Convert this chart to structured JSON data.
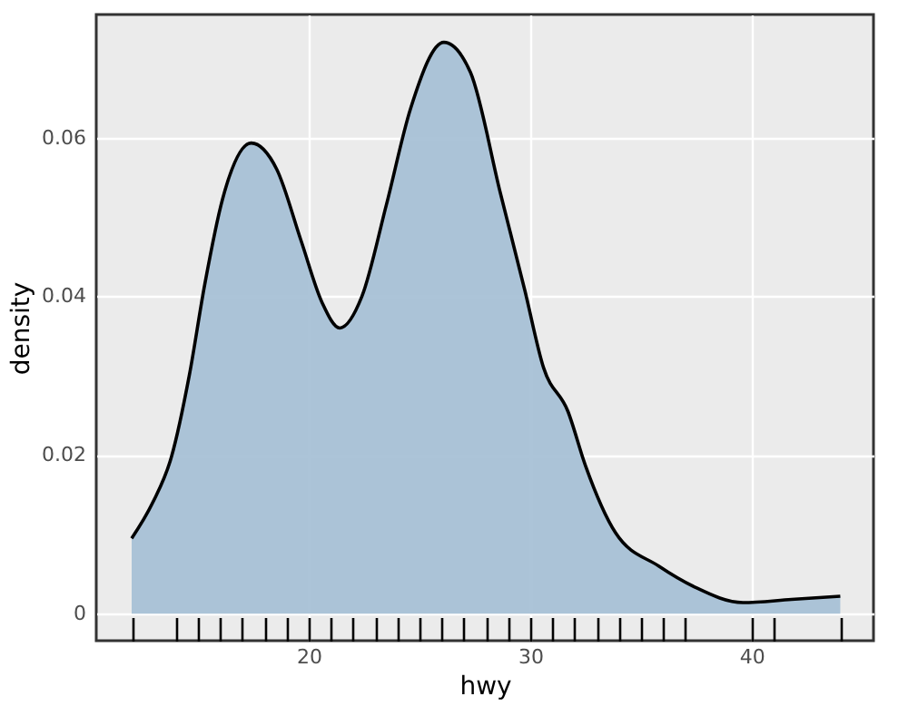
{
  "chart_data": {
    "type": "area",
    "xlabel": "hwy",
    "ylabel": "density",
    "x": [
      12,
      12.95,
      13.8,
      14.6,
      15.3,
      16.1,
      17.4,
      18.55,
      19.65,
      20.6,
      21.4,
      22.4,
      23.5,
      24.6,
      26.1,
      27.3,
      28.65,
      29.75,
      30.6,
      31.7,
      32.5,
      33.85,
      35.8,
      37.4,
      39.6,
      41.8,
      44
    ],
    "series": [
      {
        "color": "#a8c1d6",
        "values": [
          0.0095,
          0.014,
          0.0198,
          0.03,
          0.0415,
          0.0522,
          0.0593,
          0.056,
          0.047,
          0.0392,
          0.036,
          0.04,
          0.0515,
          0.0637,
          0.072,
          0.0682,
          0.053,
          0.0408,
          0.031,
          0.0255,
          0.0186,
          0.0102,
          0.006,
          0.0034,
          0.0014,
          0.0018,
          0.0022
        ]
      }
    ],
    "xlim": [
      10.4,
      45.5
    ],
    "ylim": [
      -0.0034,
      0.0755
    ],
    "xticks": [
      {
        "value": 12,
        "label": null
      },
      {
        "value": 14,
        "label": null
      },
      {
        "value": 15,
        "label": null
      },
      {
        "value": 16,
        "label": null
      },
      {
        "value": 17,
        "label": null
      },
      {
        "value": 18,
        "label": null
      },
      {
        "value": 19,
        "label": null
      },
      20,
      {
        "value": 21,
        "label": null
      },
      {
        "value": 22,
        "label": null
      },
      {
        "value": 23,
        "label": null
      },
      {
        "value": 24,
        "label": null
      },
      {
        "value": 25,
        "label": null
      },
      {
        "value": 26,
        "label": null
      },
      {
        "value": 27,
        "label": null
      },
      {
        "value": 28,
        "label": null
      },
      {
        "value": 29,
        "label": null
      },
      30,
      {
        "value": 31,
        "label": null
      },
      {
        "value": 32,
        "label": null
      },
      {
        "value": 33,
        "label": null
      },
      {
        "value": 34,
        "label": null
      },
      {
        "value": 35,
        "label": null
      },
      {
        "value": 36,
        "label": null
      },
      {
        "value": 37,
        "label": null
      },
      40,
      {
        "value": 41,
        "label": null
      },
      {
        "value": 44,
        "label": null
      }
    ],
    "yticks": [
      0,
      0.02,
      0.04,
      0.06
    ],
    "grid": true,
    "line_style": "solid"
  }
}
